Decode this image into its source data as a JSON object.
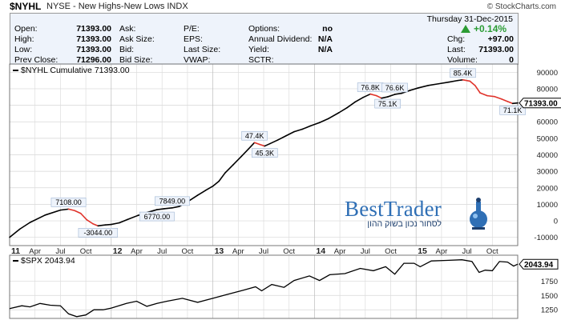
{
  "header": {
    "ticker": "$NYHL",
    "description": "NYSE - New Highs-New Lows INDX",
    "watermark": "© StockCharts.com"
  },
  "quote": {
    "date": "Thursday  31-Dec-2015",
    "pct_change": "+0.14%",
    "left_fields": [
      {
        "label": "Open:",
        "value": "71393.00"
      },
      {
        "label": "High:",
        "value": "71393.00"
      },
      {
        "label": "Low:",
        "value": "71393.00"
      },
      {
        "label": "Prev Close:",
        "value": "71296.00"
      }
    ],
    "mid_labels": [
      "Ask:",
      "Ask Size:",
      "Bid:",
      "Bid Size:"
    ],
    "ratio_labels": [
      "P/E:",
      "EPS:",
      "Last Size:",
      "VWAP:"
    ],
    "stat_fields": [
      {
        "label": "Options:",
        "value": "no"
      },
      {
        "label": "Annual Dividend:",
        "value": "N/A"
      },
      {
        "label": "Yield:",
        "value": "N/A"
      },
      {
        "label": "SCTR:",
        "value": ""
      }
    ],
    "right_fields": [
      {
        "label": "Chg:",
        "value": "+97.00"
      },
      {
        "label": "Last:",
        "value": "71393.00"
      },
      {
        "label": "Volume:",
        "value": "0"
      }
    ]
  },
  "logo": {
    "name": "BestTrader",
    "tagline": "לסחור נכון בשוק ההון"
  },
  "chart_data": [
    {
      "type": "line",
      "title": "$NYHL Cumulative 71393.00",
      "last_value_label": "71393.00",
      "colors": {
        "up": "#000000",
        "down": "#e0332b",
        "panel_bg": "#eef3fb"
      },
      "ylim": [
        -15000,
        95000
      ],
      "y_ticks": [
        -10000,
        0,
        10000,
        20000,
        30000,
        40000,
        50000,
        60000,
        70000,
        80000,
        90000
      ],
      "y_tick_labels": [
        "-10000",
        "0",
        "10000",
        "20000",
        "30000",
        "40000",
        "50000",
        "60000",
        "70000",
        "80000",
        "90000"
      ],
      "x_ticks": [
        {
          "t": 2011.0,
          "label": "11",
          "major": true
        },
        {
          "t": 2011.25,
          "label": "Apr",
          "major": false
        },
        {
          "t": 2011.5,
          "label": "Jul",
          "major": false
        },
        {
          "t": 2011.75,
          "label": "Oct",
          "major": false
        },
        {
          "t": 2012.0,
          "label": "12",
          "major": true
        },
        {
          "t": 2012.25,
          "label": "Apr",
          "major": false
        },
        {
          "t": 2012.5,
          "label": "Jul",
          "major": false
        },
        {
          "t": 2012.75,
          "label": "Oct",
          "major": false
        },
        {
          "t": 2013.0,
          "label": "13",
          "major": true
        },
        {
          "t": 2013.25,
          "label": "Apr",
          "major": false
        },
        {
          "t": 2013.5,
          "label": "Jul",
          "major": false
        },
        {
          "t": 2013.75,
          "label": "Oct",
          "major": false
        },
        {
          "t": 2014.0,
          "label": "14",
          "major": true
        },
        {
          "t": 2014.25,
          "label": "Apr",
          "major": false
        },
        {
          "t": 2014.5,
          "label": "Jul",
          "major": false
        },
        {
          "t": 2014.75,
          "label": "Oct",
          "major": false
        },
        {
          "t": 2015.0,
          "label": "15",
          "major": true
        },
        {
          "t": 2015.25,
          "label": "Apr",
          "major": false
        },
        {
          "t": 2015.5,
          "label": "Jul",
          "major": false
        },
        {
          "t": 2015.75,
          "label": "Oct",
          "major": false
        }
      ],
      "xlim": [
        2011.0,
        2016.0
      ],
      "points": [
        [
          2011.0,
          -10000
        ],
        [
          2011.1,
          -5000
        ],
        [
          2011.2,
          -1000
        ],
        [
          2011.35,
          3500
        ],
        [
          2011.5,
          6500
        ],
        [
          2011.58,
          7108
        ],
        [
          2011.64,
          6200
        ],
        [
          2011.7,
          4500
        ],
        [
          2011.76,
          600
        ],
        [
          2011.82,
          -1800
        ],
        [
          2011.87,
          -3044
        ],
        [
          2011.94,
          -2500
        ],
        [
          2012.0,
          -2200
        ],
        [
          2012.08,
          -1200
        ],
        [
          2012.16,
          800
        ],
        [
          2012.26,
          3200
        ],
        [
          2012.36,
          5200
        ],
        [
          2012.45,
          6770
        ],
        [
          2012.52,
          7300
        ],
        [
          2012.6,
          7849
        ],
        [
          2012.67,
          8700
        ],
        [
          2012.75,
          11500
        ],
        [
          2012.85,
          15500
        ],
        [
          2012.93,
          18500
        ],
        [
          2013.0,
          21000
        ],
        [
          2013.06,
          24000
        ],
        [
          2013.12,
          29000
        ],
        [
          2013.2,
          34000
        ],
        [
          2013.28,
          39000
        ],
        [
          2013.35,
          43500
        ],
        [
          2013.41,
          47400
        ],
        [
          2013.46,
          46300
        ],
        [
          2013.51,
          45300
        ],
        [
          2013.56,
          46700
        ],
        [
          2013.64,
          49000
        ],
        [
          2013.72,
          51500
        ],
        [
          2013.8,
          54000
        ],
        [
          2013.88,
          55500
        ],
        [
          2013.96,
          57500
        ],
        [
          2014.05,
          59500
        ],
        [
          2014.14,
          62000
        ],
        [
          2014.24,
          65500
        ],
        [
          2014.32,
          68500
        ],
        [
          2014.4,
          72000
        ],
        [
          2014.48,
          74800
        ],
        [
          2014.55,
          76800
        ],
        [
          2014.61,
          75800
        ],
        [
          2014.66,
          74300
        ],
        [
          2014.72,
          75100
        ],
        [
          2014.79,
          76600
        ],
        [
          2014.86,
          77300
        ],
        [
          2014.94,
          79000
        ],
        [
          2015.02,
          80500
        ],
        [
          2015.12,
          82000
        ],
        [
          2015.22,
          83000
        ],
        [
          2015.32,
          84000
        ],
        [
          2015.41,
          85000
        ],
        [
          2015.46,
          85400
        ],
        [
          2015.53,
          84600
        ],
        [
          2015.58,
          82000
        ],
        [
          2015.63,
          77500
        ],
        [
          2015.7,
          75800
        ],
        [
          2015.77,
          75300
        ],
        [
          2015.84,
          73800
        ],
        [
          2015.9,
          72300
        ],
        [
          2015.95,
          71100
        ],
        [
          2016.0,
          71393
        ]
      ],
      "annotations": [
        {
          "t": 2011.58,
          "v": 7108,
          "label": "7108.00",
          "pos": "above"
        },
        {
          "t": 2011.87,
          "v": -3044,
          "label": "-3044.00",
          "pos": "below"
        },
        {
          "t": 2012.6,
          "v": 7849,
          "label": "7849.00",
          "pos": "above"
        },
        {
          "t": 2012.45,
          "v": 6770,
          "label": "6770.00",
          "pos": "below"
        },
        {
          "t": 2013.41,
          "v": 47400,
          "label": "47.4K",
          "pos": "above"
        },
        {
          "t": 2013.51,
          "v": 45300,
          "label": "45.3K",
          "pos": "below"
        },
        {
          "t": 2014.55,
          "v": 76800,
          "label": "76.8K",
          "pos": "above"
        },
        {
          "t": 2014.79,
          "v": 76600,
          "label": "76.6K",
          "pos": "above"
        },
        {
          "t": 2014.72,
          "v": 75100,
          "label": "75.1K",
          "pos": "below"
        },
        {
          "t": 2015.46,
          "v": 85400,
          "label": "85.4K",
          "pos": "above"
        },
        {
          "t": 2015.95,
          "v": 71100,
          "label": "71.1K",
          "pos": "below"
        }
      ]
    },
    {
      "type": "line",
      "title": "$SPX 2043.94",
      "last_value_label": "2043.94",
      "ylim": [
        1100,
        2200
      ],
      "y_ticks": [
        1250,
        1500,
        1750
      ],
      "y_tick_labels": [
        "1250",
        "1500",
        "1750"
      ],
      "xlim": [
        2011.0,
        2016.0
      ],
      "points": [
        [
          2011.0,
          1270
        ],
        [
          2011.12,
          1320
        ],
        [
          2011.2,
          1300
        ],
        [
          2011.3,
          1360
        ],
        [
          2011.4,
          1330
        ],
        [
          2011.5,
          1320
        ],
        [
          2011.58,
          1180
        ],
        [
          2011.66,
          1130
        ],
        [
          2011.75,
          1160
        ],
        [
          2011.83,
          1250
        ],
        [
          2011.92,
          1250
        ],
        [
          2012.0,
          1280
        ],
        [
          2012.15,
          1360
        ],
        [
          2012.25,
          1400
        ],
        [
          2012.35,
          1310
        ],
        [
          2012.45,
          1360
        ],
        [
          2012.55,
          1400
        ],
        [
          2012.7,
          1450
        ],
        [
          2012.85,
          1380
        ],
        [
          2013.0,
          1450
        ],
        [
          2013.15,
          1520
        ],
        [
          2013.3,
          1590
        ],
        [
          2013.42,
          1650
        ],
        [
          2013.48,
          1580
        ],
        [
          2013.58,
          1690
        ],
        [
          2013.7,
          1640
        ],
        [
          2013.8,
          1760
        ],
        [
          2013.95,
          1840
        ],
        [
          2014.05,
          1760
        ],
        [
          2014.15,
          1860
        ],
        [
          2014.3,
          1880
        ],
        [
          2014.45,
          1970
        ],
        [
          2014.58,
          1930
        ],
        [
          2014.7,
          2000
        ],
        [
          2014.79,
          1870
        ],
        [
          2014.88,
          2060
        ],
        [
          2014.98,
          2060
        ],
        [
          2015.04,
          2000
        ],
        [
          2015.15,
          2100
        ],
        [
          2015.3,
          2110
        ],
        [
          2015.45,
          2120
        ],
        [
          2015.55,
          2090
        ],
        [
          2015.62,
          1900
        ],
        [
          2015.68,
          1940
        ],
        [
          2015.75,
          1930
        ],
        [
          2015.82,
          2090
        ],
        [
          2015.9,
          2080
        ],
        [
          2015.96,
          2010
        ],
        [
          2016.0,
          2043.94
        ]
      ]
    }
  ]
}
